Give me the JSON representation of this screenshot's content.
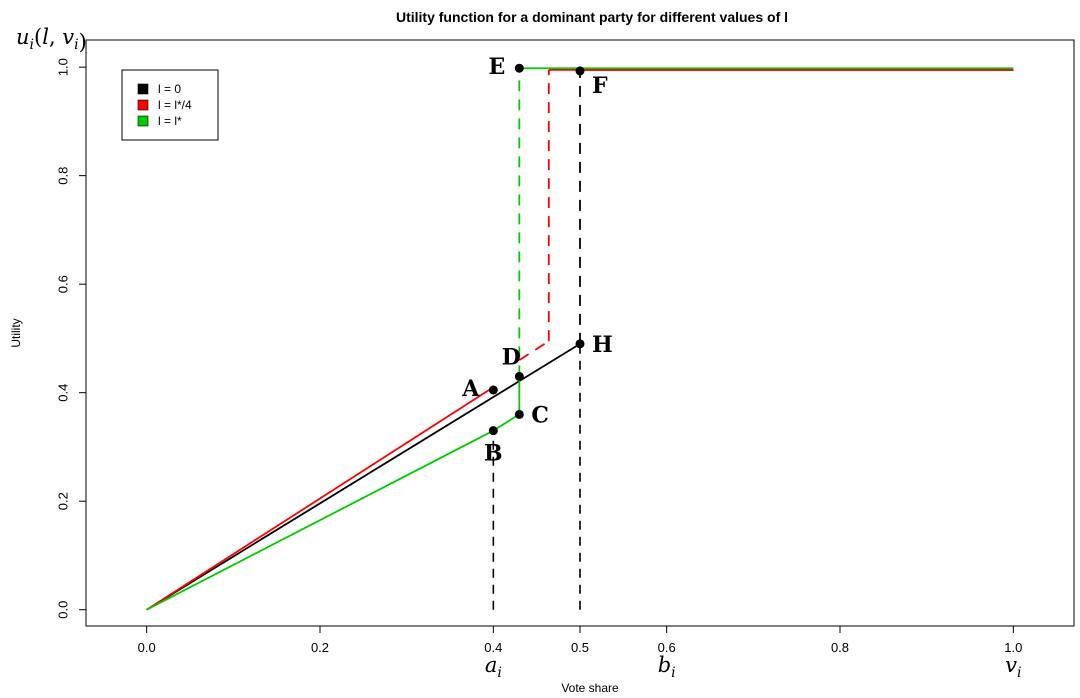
{
  "chart_data": {
    "type": "line",
    "title": "Utility function for a dominant party for different values of l",
    "xlabel": "Vote share",
    "ylabel": "Utility",
    "corner_label": "u_i(l, v_i)",
    "xlim": [
      -0.07,
      1.07
    ],
    "ylim": [
      -0.03,
      1.05
    ],
    "x_ticks": [
      {
        "value": 0.0,
        "label": "0.0"
      },
      {
        "value": 0.2,
        "label": "0.2"
      },
      {
        "value": 0.4,
        "label": "0.4"
      },
      {
        "value": 0.6,
        "label": "0.6"
      },
      {
        "value": 0.8,
        "label": "0.8"
      },
      {
        "value": 1.0,
        "label": "1.0"
      }
    ],
    "x_special_tick": {
      "value": 0.5,
      "label": "0.5"
    },
    "y_ticks": [
      {
        "value": 0.0,
        "label": "0.0"
      },
      {
        "value": 0.2,
        "label": "0.2"
      },
      {
        "value": 0.4,
        "label": "0.4"
      },
      {
        "value": 0.6,
        "label": "0.6"
      },
      {
        "value": 0.8,
        "label": "0.8"
      },
      {
        "value": 1.0,
        "label": "1.0"
      }
    ],
    "below_axis_labels": [
      {
        "x": 0.4,
        "label": "a_i"
      },
      {
        "x": 0.6,
        "label": "b_i"
      },
      {
        "x": 1.0,
        "label": "v_i"
      }
    ],
    "legend": {
      "position": "top-left",
      "entries": [
        {
          "label": "l = 0",
          "color": "#000000"
        },
        {
          "label": "l = l*/4",
          "color": "#ff0000"
        },
        {
          "label": "l = l*",
          "color": "#00cc00"
        }
      ]
    },
    "series": [
      {
        "name": "l = 0",
        "color": "#000000",
        "segments": [
          {
            "points": [
              [
                0,
                0
              ],
              [
                0.5,
                0.49
              ]
            ],
            "dashed": false
          },
          {
            "points": [
              [
                0.5,
                0.49
              ],
              [
                0.5,
                0.995
              ]
            ],
            "dashed": true
          },
          {
            "points": [
              [
                0.5,
                0.995
              ],
              [
                1.0,
                0.995
              ]
            ],
            "dashed": false
          }
        ]
      },
      {
        "name": "l = l*/4",
        "color": "#ff0000",
        "segments": [
          {
            "points": [
              [
                0,
                0
              ],
              [
                0.4,
                0.41
              ]
            ],
            "dashed": false
          },
          {
            "points": [
              [
                0.43,
                0.46
              ],
              [
                0.464,
                0.495
              ]
            ],
            "dashed": true
          },
          {
            "points": [
              [
                0.464,
                0.495
              ],
              [
                0.464,
                0.995
              ]
            ],
            "dashed": true
          },
          {
            "points": [
              [
                0.464,
                0.995
              ],
              [
                1.0,
                0.995
              ]
            ],
            "dashed": false
          }
        ]
      },
      {
        "name": "l = l*",
        "color": "#00cc00",
        "segments": [
          {
            "points": [
              [
                0,
                0
              ],
              [
                0.4,
                0.33
              ]
            ],
            "dashed": false
          },
          {
            "points": [
              [
                0.4,
                0.33
              ],
              [
                0.43,
                0.36
              ]
            ],
            "dashed": false
          },
          {
            "points": [
              [
                0.43,
                0.36
              ],
              [
                0.43,
                0.43
              ]
            ],
            "dashed": false
          },
          {
            "points": [
              [
                0.43,
                0.43
              ],
              [
                0.43,
                0.998
              ]
            ],
            "dashed": true
          },
          {
            "points": [
              [
                0.43,
                0.998
              ],
              [
                1.0,
                0.998
              ]
            ],
            "dashed": false
          }
        ]
      }
    ],
    "reference_lines": [
      {
        "x": 0.4,
        "y_from": 0.0,
        "y_to": 0.33,
        "color": "#000000",
        "dashed": true
      },
      {
        "x": 0.5,
        "y_from": 0.0,
        "y_to": 0.49,
        "color": "#000000",
        "dashed": true
      }
    ],
    "points": [
      {
        "label": "A",
        "x": 0.4,
        "y": 0.405,
        "label_side": "left"
      },
      {
        "label": "B",
        "x": 0.4,
        "y": 0.33,
        "label_side": "below"
      },
      {
        "label": "C",
        "x": 0.43,
        "y": 0.36,
        "label_side": "right"
      },
      {
        "label": "D",
        "x": 0.43,
        "y": 0.43,
        "label_side": "above-left"
      },
      {
        "label": "E",
        "x": 0.43,
        "y": 0.998,
        "label_side": "left"
      },
      {
        "label": "F",
        "x": 0.5,
        "y": 0.993,
        "label_side": "below-right"
      },
      {
        "label": "H",
        "x": 0.5,
        "y": 0.49,
        "label_side": "right"
      }
    ],
    "grid": false
  }
}
